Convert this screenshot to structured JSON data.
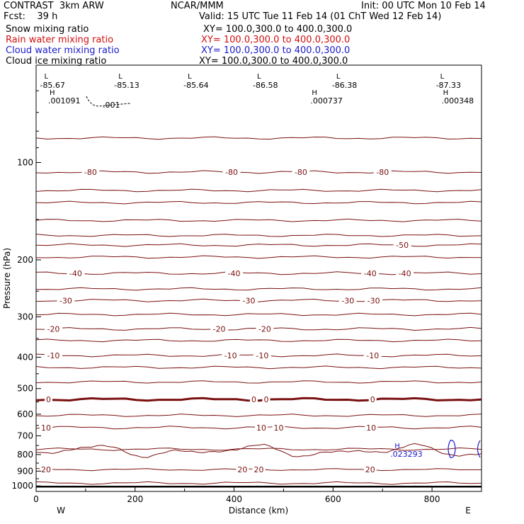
{
  "header": {
    "model": "CONTRAST  3km ARW",
    "org": "NCAR/MMM",
    "init": "Init: 00 UTC Mon 10 Feb 14",
    "fcst": "Fcst:    39 h",
    "valid": "Valid: 15 UTC Tue 11 Feb 14 (01 ChT Wed 12 Feb 14)"
  },
  "fields": [
    {
      "name": "Snow mixing ratio",
      "xy": "XY= 100.0,300.0 to 400.0,300.0",
      "color": "#000000"
    },
    {
      "name": "Rain water mixing ratio",
      "xy": "XY= 100.0,300.0 to 400.0,300.0",
      "color": "#d01010"
    },
    {
      "name": "Cloud water mixing ratio",
      "xy": "XY= 100.0,300.0 to 400.0,300.0",
      "color": "#1a1acc"
    },
    {
      "name": "Cloud ice mixing ratio",
      "xy": "XY= 100.0,300.0 to 400.0,300.0",
      "color": "#000000"
    }
  ],
  "colors": {
    "temperature": "#7a1010",
    "frame": "#000000",
    "cloud": "#1a1acc",
    "surface": "#000000"
  },
  "chart_data": {
    "type": "line",
    "xlabel": "Distance (km)",
    "ylabel": "Pressure (hPa)",
    "xlim": [
      0,
      900
    ],
    "ylim": [
      50,
      1040
    ],
    "y_scale": "log",
    "y_reversed": true,
    "xticks": [
      "0",
      "200",
      "400",
      "600",
      "800"
    ],
    "yticks": [
      "100",
      "200",
      "300",
      "400",
      "500",
      "600",
      "700",
      "800",
      "900",
      "1000"
    ],
    "x_end_labels": {
      "left": "W",
      "right": "E"
    },
    "isotherms": [
      {
        "T": -80,
        "p": 107,
        "labels": [
          {
            "x": 110,
            "text": "-80"
          },
          {
            "x": 395,
            "text": "-80"
          },
          {
            "x": 535,
            "text": "-80"
          },
          {
            "x": 700,
            "text": "-80"
          }
        ]
      },
      {
        "T": -50,
        "p": 180,
        "labels": [
          {
            "x": 740,
            "text": "-50"
          }
        ]
      },
      {
        "T": -40,
        "p": 220,
        "labels": [
          {
            "x": 80,
            "text": "-40"
          },
          {
            "x": 400,
            "text": "-40"
          },
          {
            "x": 675,
            "text": "-40"
          },
          {
            "x": 745,
            "text": "-40"
          }
        ]
      },
      {
        "T": -30,
        "p": 267,
        "labels": [
          {
            "x": 60,
            "text": "-30"
          },
          {
            "x": 430,
            "text": "-30"
          },
          {
            "x": 630,
            "text": "-30"
          },
          {
            "x": 682,
            "text": "-30"
          }
        ]
      },
      {
        "T": -20,
        "p": 327,
        "labels": [
          {
            "x": 35,
            "text": "-20"
          },
          {
            "x": 370,
            "text": "-20"
          },
          {
            "x": 462,
            "text": "-20"
          }
        ]
      },
      {
        "T": -10,
        "p": 395,
        "labels": [
          {
            "x": 35,
            "text": "-10"
          },
          {
            "x": 393,
            "text": "-10"
          },
          {
            "x": 457,
            "text": "-10"
          },
          {
            "x": 680,
            "text": "-10"
          }
        ]
      },
      {
        "T": 0,
        "p": 540,
        "labels": [
          {
            "x": 25,
            "text": "0"
          },
          {
            "x": 440,
            "text": "0"
          },
          {
            "x": 465,
            "text": "0"
          },
          {
            "x": 680,
            "text": "0"
          }
        ]
      },
      {
        "T": 10,
        "p": 660,
        "labels": [
          {
            "x": 20,
            "text": "10"
          },
          {
            "x": 455,
            "text": "10"
          },
          {
            "x": 490,
            "text": "10"
          },
          {
            "x": 677,
            "text": "10"
          }
        ]
      },
      {
        "T": 20,
        "p": 890,
        "labels": [
          {
            "x": 20,
            "text": "20"
          },
          {
            "x": 417,
            "text": "20"
          },
          {
            "x": 450,
            "text": "20"
          },
          {
            "x": 675,
            "text": "20"
          }
        ]
      }
    ],
    "unlabeled_isotherms_hPa": [
      84,
      122,
      133,
      151,
      168,
      196,
      246,
      295,
      355,
      430,
      477,
      605,
      770,
      980
    ],
    "tropopause_minima": [
      {
        "x": 25,
        "label": "L",
        "value": "-85.67"
      },
      {
        "x": 175,
        "label": "L",
        "value": "-85.13"
      },
      {
        "x": 315,
        "label": "L",
        "value": "-85.64"
      },
      {
        "x": 455,
        "label": "L",
        "value": "-86.58"
      },
      {
        "x": 615,
        "label": "L",
        "value": "-86.38"
      },
      {
        "x": 825,
        "label": "L",
        "value": "-87.33"
      }
    ],
    "ice_maxima": [
      {
        "x": 30,
        "label": "H",
        "value": ".001091"
      },
      {
        "x": 560,
        "label": "H",
        "value": ".000737"
      },
      {
        "x": 825,
        "label": "H",
        "value": ".000348"
      }
    ],
    "ice_contour_label": ".001",
    "cloud_water_max": {
      "x": 720,
      "label": "H",
      "value": ".023293"
    }
  }
}
